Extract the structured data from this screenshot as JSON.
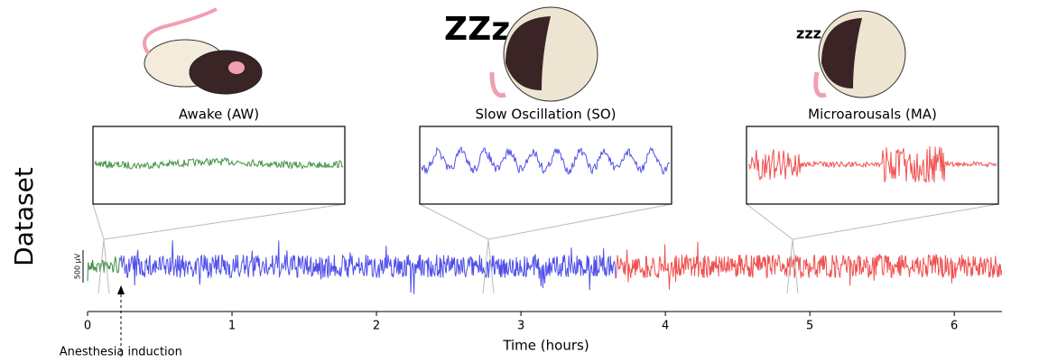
{
  "chart_data": {
    "type": "eeg",
    "y_label": "Dataset",
    "x_label": "Time (hours)",
    "xlim": [
      0,
      6.33
    ],
    "xticks": [
      0,
      1,
      2,
      3,
      4,
      5,
      6
    ],
    "series": [
      {
        "name": "Awake (AW)",
        "color": "#3f8f3f",
        "span": [
          0,
          0.23
        ]
      },
      {
        "name": "Slow Oscillation (SO)",
        "color": "#5050e8",
        "span": [
          0.23,
          3.66
        ]
      },
      {
        "name": "Microarousals (MA)",
        "color": "#f05050",
        "span": [
          3.66,
          6.33
        ]
      }
    ],
    "scale_bar": "500 µV",
    "annotation": {
      "text": "Anesthesia induction",
      "x": 0.23
    },
    "sleep_marks": [
      "ZZz",
      "zzz"
    ]
  }
}
